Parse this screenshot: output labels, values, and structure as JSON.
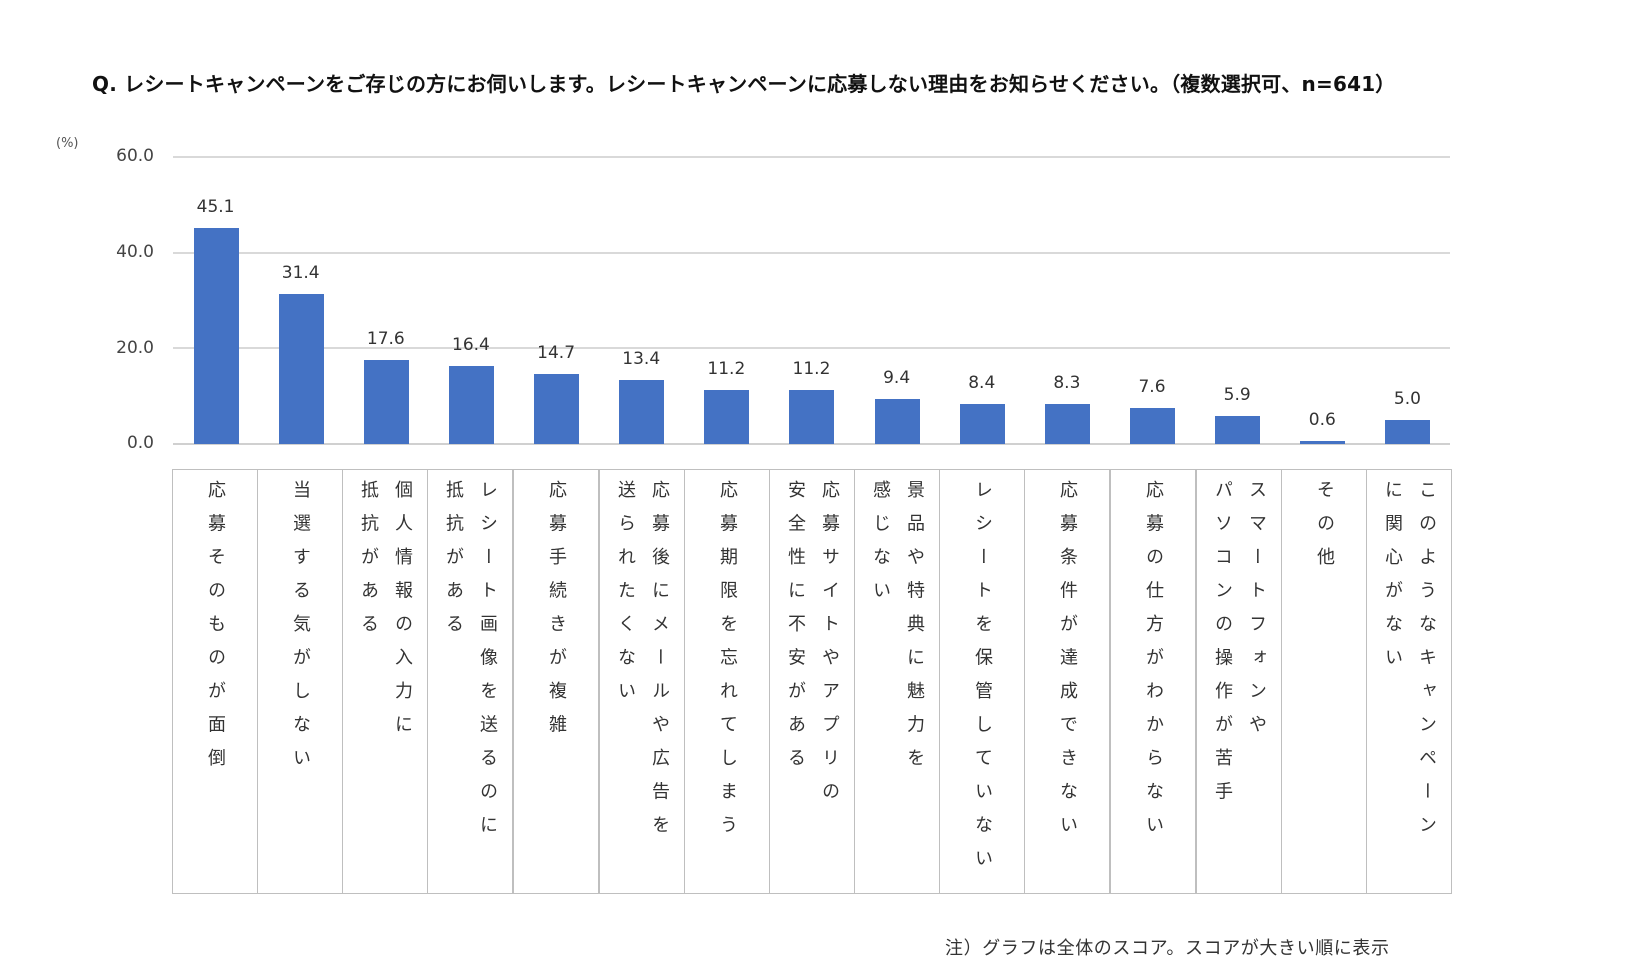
{
  "title": "Q. レシートキャンペーンをご存じの方にお伺いします。レシートキャンペーンに応募しない理由をお知らせください。（複数選択可、n=641）",
  "unit_label": "(%)",
  "footnote": "注）グラフは全体のスコア。スコアが大きい順に表示",
  "colors": {
    "bar": "#4472c4",
    "grid": "#d9d9d9",
    "table_border": "#bfbfbf"
  },
  "chart_data": {
    "type": "bar",
    "title": "Q. レシートキャンペーンをご存じの方にお伺いします。レシートキャンペーンに応募しない理由をお知らせください。（複数選択可、n=641）",
    "xlabel": "",
    "ylabel": "(%)",
    "ylim": [
      0,
      60
    ],
    "yticks": [
      "60.0",
      "40.0",
      "20.0",
      "0.0"
    ],
    "grid": true,
    "legend": null,
    "categories": [
      "応募そのものが面倒",
      "当選する気がしない",
      "個人情報の入力に抵抗がある",
      "レシート画像を送るのに抵抗がある",
      "応募手続きが複雑",
      "応募後にメールや広告を送られたくない",
      "応募期限を忘れてしまう",
      "応募サイトやアプリの安全性に不安がある",
      "景品や特典に魅力を感じない",
      "レシートを保管していない",
      "応募条件が達成できない",
      "応募の仕方がわからない",
      "スマートフォンやパソコンの操作が苦手",
      "その他",
      "このようなキャンペーンに関心がない"
    ],
    "values": [
      45.1,
      31.4,
      17.6,
      16.4,
      14.7,
      13.4,
      11.2,
      11.2,
      9.4,
      8.4,
      8.3,
      7.6,
      5.9,
      0.6,
      5.0
    ],
    "value_labels": [
      "45.1",
      "31.4",
      "17.6",
      "16.4",
      "14.7",
      "13.4",
      "11.2",
      "11.2",
      "9.4",
      "8.4",
      "8.3",
      "7.6",
      "5.9",
      "0.6",
      "5.0"
    ],
    "category_label_lines": [
      [
        "応募そのものが面倒"
      ],
      [
        "当選する気がしない"
      ],
      [
        "個人情報の入力に",
        "抵抗がある"
      ],
      [
        "レシート画像を送るのに",
        "抵抗がある"
      ],
      [
        "応募手続きが複雑"
      ],
      [
        "応募後にメールや広告を",
        "送られたくない"
      ],
      [
        "応募期限を忘れてしまう"
      ],
      [
        "応募サイトやアプリの",
        "安全性に不安がある"
      ],
      [
        "景品や特典に魅力を",
        "感じない"
      ],
      [
        "レシートを保管していない"
      ],
      [
        "応募条件が達成できない"
      ],
      [
        "応募の仕方がわからない"
      ],
      [
        "スマートフォンや",
        "パソコンの操作が苦手"
      ],
      [
        "その他"
      ],
      [
        "このようなキャンペーン",
        "に関心がない"
      ]
    ]
  }
}
